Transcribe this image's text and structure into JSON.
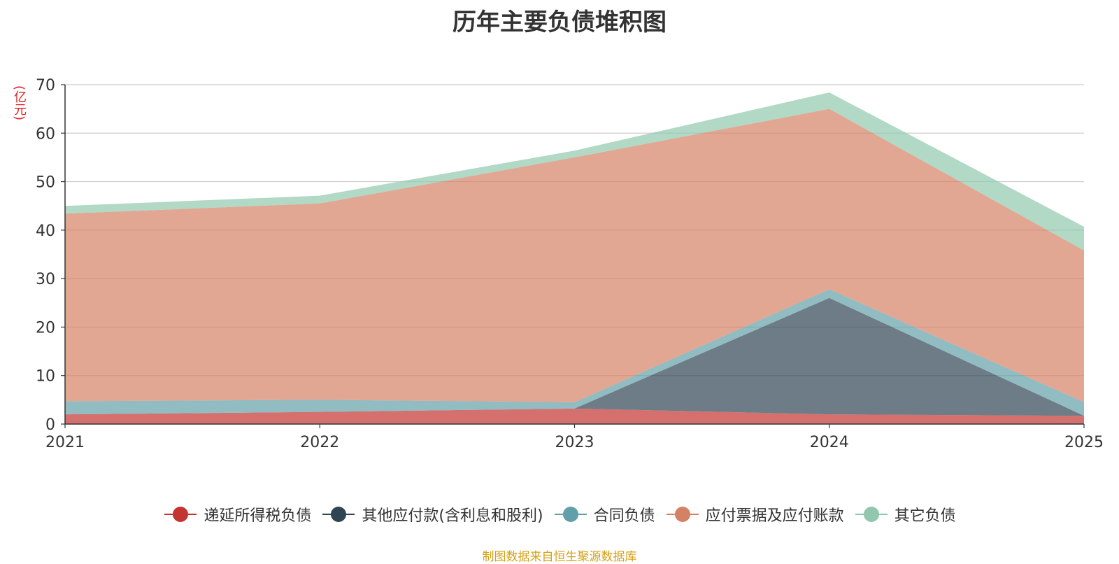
{
  "chart_data": {
    "type": "area",
    "stacked": true,
    "title": "历年主要负债堆积图",
    "ylabel": "(亿元)",
    "xlabel": "",
    "ylim": [
      0,
      70
    ],
    "yticks": [
      0,
      10,
      20,
      30,
      40,
      50,
      60,
      70
    ],
    "categories": [
      "2021",
      "2022",
      "2023",
      "2024",
      "2025"
    ],
    "series": [
      {
        "name": "递延所得税负债",
        "color": "#c23531",
        "values": [
          2.0,
          2.5,
          3.2,
          2.0,
          1.7
        ]
      },
      {
        "name": "其他应付款(含利息和股利)",
        "color": "#2f4554",
        "values": [
          0,
          0,
          0,
          24.0,
          0
        ]
      },
      {
        "name": "合同负债",
        "color": "#61a0a8",
        "values": [
          2.7,
          2.5,
          1.3,
          1.8,
          2.8
        ]
      },
      {
        "name": "应付票据及应付账款",
        "color": "#d48265",
        "values": [
          38.7,
          40.5,
          50.5,
          37.2,
          31.3
        ]
      },
      {
        "name": "其它负债",
        "color": "#91c7ae",
        "values": [
          1.6,
          1.6,
          1.4,
          3.4,
          4.9
        ]
      }
    ],
    "legend_position": "bottom",
    "grid": true
  },
  "source_note": "制图数据来自恒生聚源数据库"
}
